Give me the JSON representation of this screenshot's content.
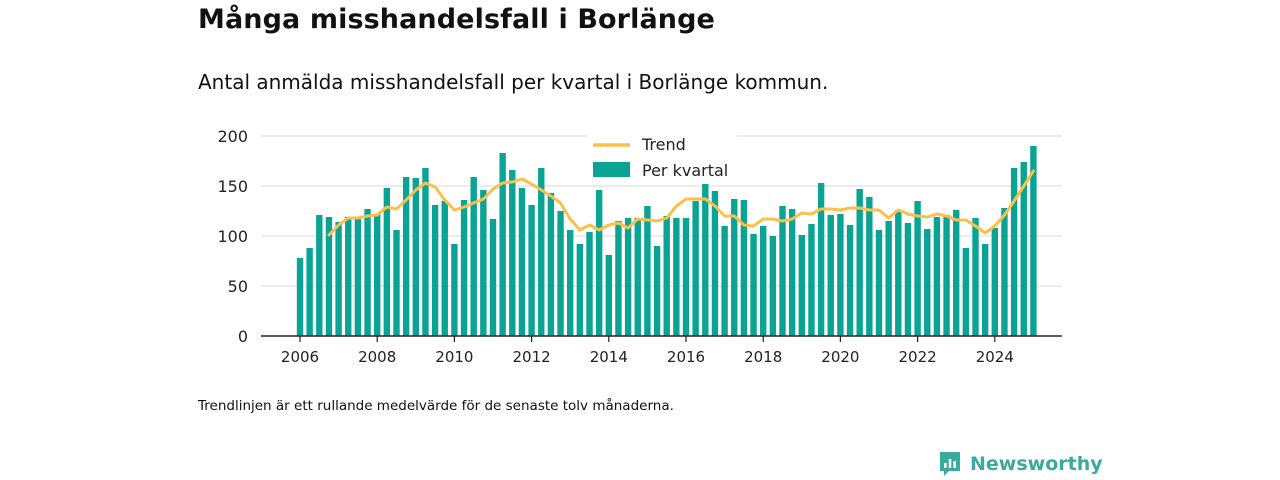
{
  "title": "Många misshandelsfall i Borlänge",
  "subtitle": "Antal anmälda misshandelsfall per kvartal i Borlänge kommun.",
  "footnote": "Trendlinjen är ett rullande medelvärde för de senaste tolv månaderna.",
  "brand": {
    "name": "Newsworthy",
    "icon": "newsworthy-logo-icon"
  },
  "colors": {
    "bars": "#0aa394",
    "trend": "#fbbf4b",
    "grid": "#d9d9d9",
    "axis": "#222222"
  },
  "chart_data": {
    "type": "bar",
    "title": "Många misshandelsfall i Borlänge",
    "xlabel": "",
    "ylabel": "",
    "ylim": [
      0,
      200
    ],
    "yticks": [
      0,
      50,
      100,
      150,
      200
    ],
    "xticks": [
      "2006",
      "2008",
      "2010",
      "2012",
      "2014",
      "2016",
      "2018",
      "2020",
      "2022",
      "2024"
    ],
    "grid": true,
    "legend_position": "top-center",
    "series": [
      {
        "name": "Per kvartal",
        "kind": "bar",
        "start": "2006 Q1",
        "values": [
          78,
          88,
          121,
          119,
          114,
          119,
          118,
          127,
          122,
          148,
          106,
          159,
          158,
          168,
          131,
          135,
          92,
          136,
          159,
          146,
          117,
          183,
          166,
          148,
          131,
          168,
          143,
          125,
          106,
          92,
          104,
          146,
          81,
          115,
          118,
          118,
          130,
          90,
          120,
          118,
          118,
          135,
          155,
          145,
          110,
          137,
          136,
          102,
          110,
          100,
          130,
          127,
          101,
          112,
          153,
          121,
          122,
          111,
          147,
          139,
          106,
          115,
          126,
          113,
          135,
          107,
          119,
          121,
          126,
          88,
          118,
          92,
          108,
          128,
          168,
          174,
          190
        ]
      },
      {
        "name": "Trend",
        "kind": "line",
        "start": "2006 Q4",
        "values": [
          101,
          111,
          118,
          118,
          120,
          121,
          129,
          127,
          136,
          146,
          153,
          149,
          136,
          126,
          129,
          133,
          137,
          147,
          153,
          154,
          157,
          152,
          146,
          140,
          133,
          117,
          106,
          111,
          106,
          111,
          113,
          108,
          117,
          116,
          115,
          118,
          130,
          137,
          137,
          137,
          130,
          120,
          120,
          111,
          110,
          117,
          117,
          115,
          117,
          123,
          122,
          127,
          127,
          126,
          128,
          128,
          126,
          126,
          118,
          126,
          122,
          120,
          119,
          122,
          120,
          116,
          116,
          110,
          103,
          110,
          121,
          135,
          150,
          165
        ]
      }
    ]
  }
}
